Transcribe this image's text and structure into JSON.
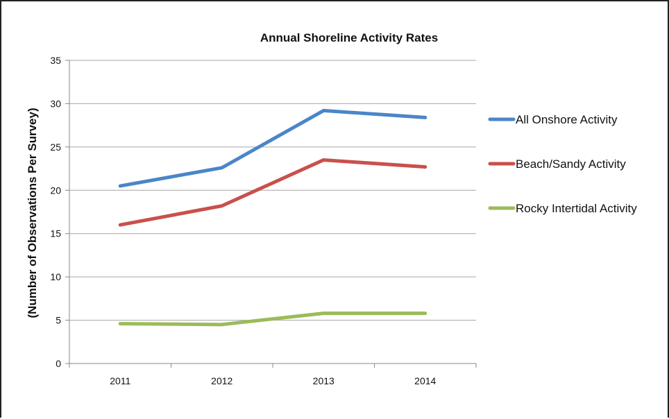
{
  "chart_data": {
    "type": "line",
    "title": "Annual Shoreline Activity Rates",
    "xlabel": "",
    "ylabel": "(Number of Observations Per Survey)",
    "categories": [
      "2011",
      "2012",
      "2013",
      "2014"
    ],
    "ylim": [
      0,
      35
    ],
    "yticks": [
      "0",
      "5",
      "10",
      "15",
      "20",
      "25",
      "30",
      "35"
    ],
    "grid": true,
    "legend_position": "right",
    "series": [
      {
        "name": "All Onshore Activity",
        "color": "#4a86c8",
        "values": [
          20.5,
          22.6,
          29.2,
          28.4
        ]
      },
      {
        "name": "Beach/Sandy Activity",
        "color": "#c9504c",
        "values": [
          16.0,
          18.2,
          23.5,
          22.7
        ]
      },
      {
        "name": "Rocky Intertidal Activity",
        "color": "#9bbb59",
        "values": [
          4.6,
          4.5,
          5.8,
          5.8
        ]
      }
    ]
  }
}
